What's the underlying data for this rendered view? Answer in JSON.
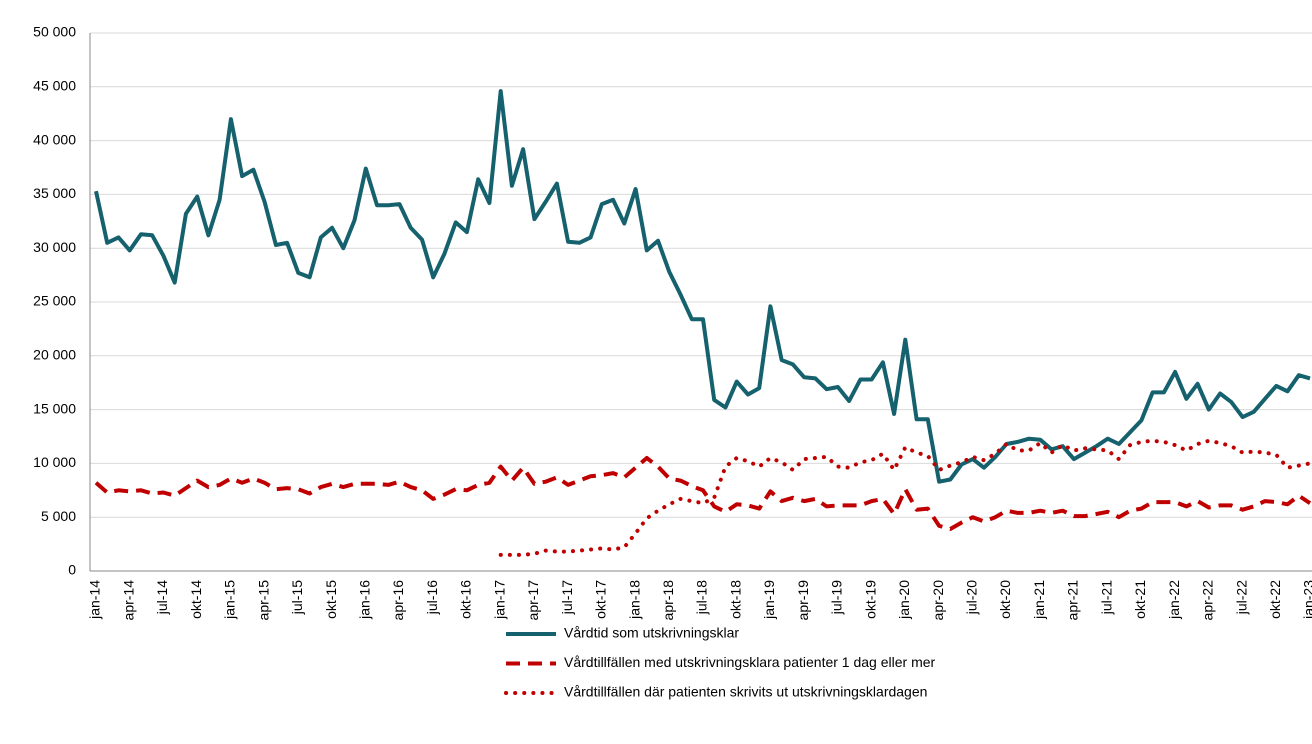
{
  "chart_data": {
    "type": "line",
    "categories": [
      "jan-14",
      null,
      null,
      "apr-14",
      null,
      null,
      "jul-14",
      null,
      null,
      "okt-14",
      null,
      null,
      "jan-15",
      null,
      null,
      "apr-15",
      null,
      null,
      "jul-15",
      null,
      null,
      "okt-15",
      null,
      null,
      "jan-16",
      null,
      null,
      "apr-16",
      null,
      null,
      "jul-16",
      null,
      null,
      "okt-16",
      null,
      null,
      "jan-17",
      null,
      null,
      "apr-17",
      null,
      null,
      "jul-17",
      null,
      null,
      "okt-17",
      null,
      null,
      "jan-18",
      null,
      null,
      "apr-18",
      null,
      null,
      "jul-18",
      null,
      null,
      "okt-18",
      null,
      null,
      "jan-19",
      null,
      null,
      "apr-19",
      null,
      null,
      "jul-19",
      null,
      null,
      "okt-19",
      null,
      null,
      "jan-20",
      null,
      null,
      "apr-20",
      null,
      null,
      "jul-20",
      null,
      null,
      "okt-20",
      null,
      null,
      "jan-21",
      null,
      null,
      "apr-21",
      null,
      null,
      "jul-21",
      null,
      null,
      "okt-21",
      null,
      null,
      "jan-22",
      null,
      null,
      "apr-22",
      null,
      null,
      "jul-22",
      null,
      null,
      "okt-22",
      null,
      null,
      "jan-23"
    ],
    "series": [
      {
        "name": "Vårdtid som utskrivningsklar",
        "color": "#15616d",
        "style": "solid",
        "values": [
          35300,
          30500,
          31000,
          29800,
          31300,
          31200,
          29300,
          26800,
          33200,
          34800,
          31200,
          34500,
          42000,
          36700,
          37300,
          34300,
          30300,
          30500,
          27700,
          27300,
          31000,
          31900,
          30000,
          32600,
          37400,
          34000,
          34000,
          34100,
          31900,
          30800,
          27300,
          29500,
          32400,
          31500,
          36400,
          34200,
          44600,
          35800,
          39200,
          32700,
          34300,
          36000,
          30600,
          30500,
          31000,
          34100,
          34500,
          32300,
          35500,
          29800,
          30700,
          27800,
          25700,
          23400,
          23400,
          15900,
          15200,
          17600,
          16400,
          17000,
          24600,
          19600,
          19200,
          18000,
          17900,
          16900,
          17100,
          15800,
          17800,
          17800,
          19400,
          14600,
          21500,
          14100,
          14100,
          8300,
          8500,
          9900,
          10400,
          9600,
          10600,
          11800,
          12000,
          12300,
          12200,
          11300,
          11600,
          10400,
          11000,
          11600,
          12300,
          11800,
          12900,
          14000,
          16600,
          16600,
          18500,
          16000,
          17400,
          15000,
          16500,
          15700,
          14300,
          14800,
          16000,
          17200,
          16700,
          18200,
          17900
        ]
      },
      {
        "name": "Vårdtillfällen med utskrivningsklara patienter 1 dag eller mer",
        "color": "#c00000",
        "style": "dashed",
        "values": [
          8200,
          7300,
          7500,
          7400,
          7500,
          7200,
          7300,
          7000,
          7700,
          8400,
          7800,
          8000,
          8600,
          8200,
          8600,
          8200,
          7600,
          7700,
          7600,
          7200,
          7800,
          8100,
          7800,
          8100,
          8100,
          8100,
          8000,
          8300,
          7800,
          7500,
          6700,
          7100,
          7600,
          7500,
          8000,
          8200,
          9700,
          8400,
          9600,
          8100,
          8300,
          8700,
          8000,
          8400,
          8800,
          8900,
          9100,
          8700,
          9600,
          10500,
          9700,
          8600,
          8400,
          7900,
          7500,
          6000,
          5500,
          6200,
          6100,
          5800,
          7400,
          6500,
          6800,
          6500,
          6700,
          6000,
          6100,
          6100,
          6100,
          6500,
          6700,
          5300,
          7600,
          5700,
          5800,
          4200,
          3900,
          4500,
          5000,
          4600,
          5000,
          5600,
          5400,
          5400,
          5600,
          5400,
          5600,
          5100,
          5100,
          5300,
          5500,
          5000,
          5600,
          5800,
          6400,
          6400,
          6400,
          6000,
          6500,
          5900,
          6100,
          6100,
          5700,
          6000,
          6500,
          6400,
          6200,
          7000,
          6300
        ]
      },
      {
        "name": "Vårdtillfällen där patienten skrivits ut utskrivningsklardagen",
        "color": "#c00000",
        "style": "dotted",
        "values": [
          null,
          null,
          null,
          null,
          null,
          null,
          null,
          null,
          null,
          null,
          null,
          null,
          null,
          null,
          null,
          null,
          null,
          null,
          null,
          null,
          null,
          null,
          null,
          null,
          null,
          null,
          null,
          null,
          null,
          null,
          null,
          null,
          null,
          null,
          null,
          null,
          1500,
          1500,
          1500,
          1600,
          1900,
          1800,
          1800,
          1900,
          2000,
          2100,
          2000,
          2200,
          3500,
          4900,
          5600,
          6200,
          6700,
          6500,
          6300,
          6800,
          9700,
          10500,
          10200,
          9700,
          10500,
          10100,
          9400,
          10400,
          10500,
          10600,
          9700,
          9600,
          10100,
          10300,
          10900,
          9400,
          11500,
          11000,
          10700,
          9400,
          9800,
          10100,
          10600,
          10300,
          10900,
          11800,
          11200,
          11200,
          11900,
          11000,
          11700,
          11200,
          11400,
          11300,
          11200,
          10400,
          11700,
          12000,
          12100,
          12000,
          11700,
          11200,
          11800,
          12100,
          11900,
          11600,
          11000,
          11100,
          11000,
          10800,
          9600,
          9800,
          10000
        ]
      }
    ],
    "ylim": [
      0,
      50000
    ],
    "yticks": [
      0,
      {
        "value": 5000,
        "label": "5 000"
      },
      {
        "value": 10000,
        "label": "10 000"
      },
      {
        "value": 15000,
        "label": "15 000"
      },
      {
        "value": 20000,
        "label": "20 000"
      },
      {
        "value": 25000,
        "label": "25 000"
      },
      {
        "value": 30000,
        "label": "30 000"
      },
      {
        "value": 35000,
        "label": "35 000"
      },
      {
        "value": 40000,
        "label": "40 000"
      },
      {
        "value": 45000,
        "label": "45 000"
      },
      {
        "value": 50000,
        "label": "50 000"
      }
    ],
    "grid": true,
    "legend": "bottom"
  }
}
